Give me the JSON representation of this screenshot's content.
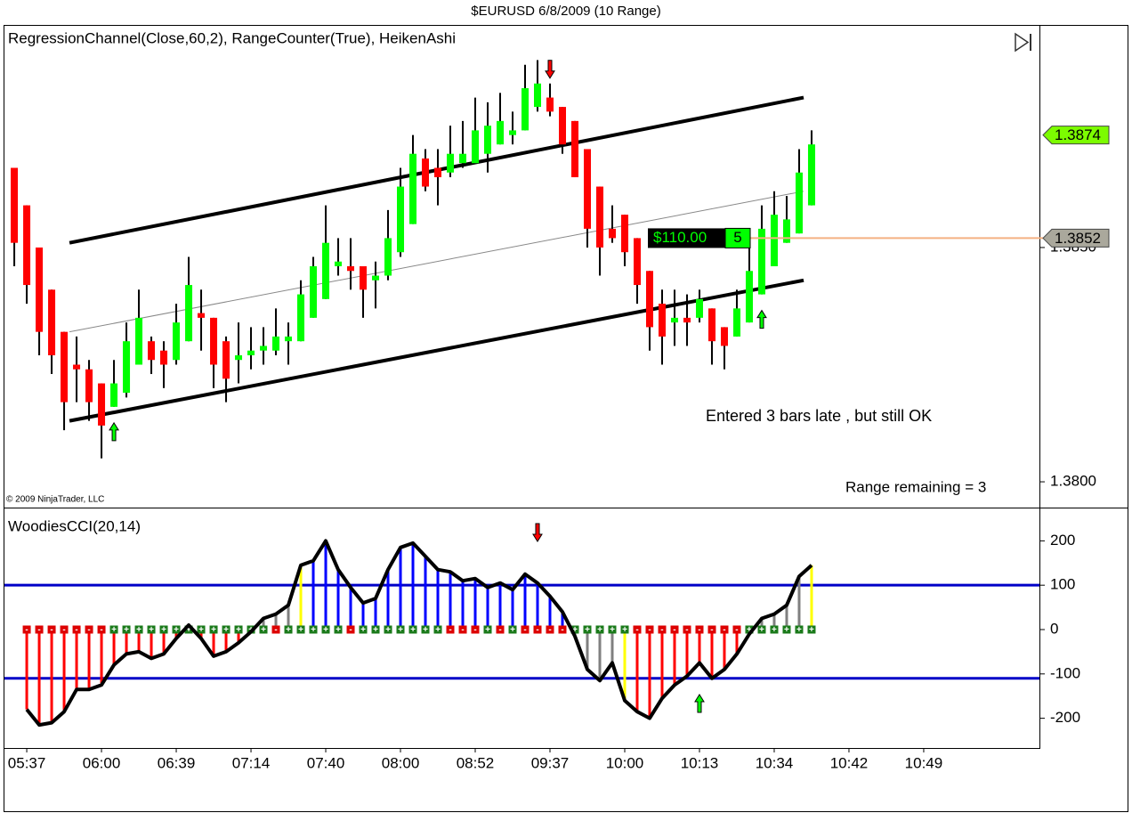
{
  "window_title": "$EURUSD  6/8/2009 (10 Range)",
  "chart_data": [
    {
      "type": "candlestick",
      "title": "RegressionChannel(Close,60,2), RangeCounter(True), HeikenAshi",
      "copyright": "© 2009 NinjaTrader, LLC",
      "xlim": [
        -0.79,
        82.29
      ],
      "ylim": [
        1.37945,
        1.38975
      ],
      "yticks": [
        {
          "value": 1.38,
          "label": "1.3800"
        },
        {
          "value": 1.385,
          "label": "1.3850"
        }
      ],
      "up_color": "#00ff00",
      "down_color": "#ff0000",
      "open": [
        1.3867,
        1.3859,
        1.385,
        1.3841,
        1.3832,
        1.3825,
        1.3824,
        1.3821,
        1.3816,
        1.3819,
        1.3825,
        1.383,
        1.3828,
        1.3826,
        1.383,
        1.3836,
        1.3835,
        1.383,
        1.3826,
        1.3827,
        1.3828,
        1.3828,
        1.383,
        1.383,
        1.3835,
        1.3839,
        1.3846,
        1.3846,
        1.3846,
        1.3843,
        1.3844,
        1.3849,
        1.3855,
        1.3869,
        1.3867,
        1.3866,
        1.3868,
        1.3868,
        1.387,
        1.3872,
        1.3874,
        1.3875,
        1.388,
        1.3882,
        1.388,
        1.3877,
        1.3871,
        1.3863,
        1.3854,
        1.3857,
        1.3852,
        1.3845,
        1.3838,
        1.3834,
        1.3835,
        1.3835,
        1.3837,
        1.3833,
        1.3831,
        1.3834,
        1.384,
        1.3846,
        1.3851,
        1.3853,
        1.3859
      ],
      "high": [
        1.3867,
        1.3859,
        1.385,
        1.3841,
        1.3832,
        1.3831,
        1.3826,
        1.3821,
        1.3826,
        1.3834,
        1.3841,
        1.3831,
        1.383,
        1.3838,
        1.3848,
        1.3841,
        1.3835,
        1.3831,
        1.3834,
        1.3833,
        1.3833,
        1.3837,
        1.3834,
        1.3843,
        1.3848,
        1.3859,
        1.3852,
        1.3852,
        1.3846,
        1.3847,
        1.3858,
        1.3867,
        1.3874,
        1.3871,
        1.3871,
        1.3876,
        1.3877,
        1.3882,
        1.3881,
        1.3883,
        1.3879,
        1.3889,
        1.389,
        1.3885,
        1.388,
        1.3877,
        1.3871,
        1.3863,
        1.3859,
        1.3857,
        1.3852,
        1.3845,
        1.3841,
        1.3841,
        1.384,
        1.3841,
        1.3837,
        1.3833,
        1.3841,
        1.3851,
        1.3859,
        1.3862,
        1.3861,
        1.3871,
        1.3875
      ],
      "low": [
        1.3846,
        1.3838,
        1.3827,
        1.3823,
        1.3811,
        1.3817,
        1.3813,
        1.3805,
        1.3816,
        1.3818,
        1.3825,
        1.3823,
        1.382,
        1.3825,
        1.383,
        1.3828,
        1.382,
        1.3817,
        1.3821,
        1.3824,
        1.3825,
        1.3827,
        1.3825,
        1.383,
        1.3835,
        1.3839,
        1.3844,
        1.3841,
        1.3835,
        1.3837,
        1.3843,
        1.3848,
        1.3855,
        1.3862,
        1.3859,
        1.3865,
        1.3867,
        1.3868,
        1.3866,
        1.3872,
        1.3872,
        1.3875,
        1.3879,
        1.3878,
        1.387,
        1.3865,
        1.385,
        1.3844,
        1.3851,
        1.3846,
        1.3838,
        1.3828,
        1.3825,
        1.3829,
        1.3829,
        1.3834,
        1.3825,
        1.3824,
        1.3831,
        1.3834,
        1.384,
        1.3846,
        1.3851,
        1.3853,
        1.3859
      ],
      "close": [
        1.3851,
        1.3842,
        1.3832,
        1.3827,
        1.3817,
        1.3824,
        1.3817,
        1.3812,
        1.3821,
        1.383,
        1.3835,
        1.3826,
        1.3825,
        1.3834,
        1.3842,
        1.3835,
        1.3825,
        1.3822,
        1.3827,
        1.3828,
        1.3829,
        1.3831,
        1.3831,
        1.384,
        1.3846,
        1.3851,
        1.3847,
        1.3845,
        1.3841,
        1.3844,
        1.3852,
        1.3863,
        1.387,
        1.3863,
        1.3865,
        1.387,
        1.387,
        1.3875,
        1.3876,
        1.3877,
        1.3875,
        1.3884,
        1.3885,
        1.3879,
        1.3872,
        1.3865,
        1.3854,
        1.385,
        1.3852,
        1.3849,
        1.3842,
        1.3833,
        1.3831,
        1.3835,
        1.3834,
        1.3839,
        1.383,
        1.3829,
        1.3837,
        1.3845,
        1.3854,
        1.3857,
        1.3856,
        1.3866,
        1.3872
      ],
      "channel": {
        "x": [
          4.43,
          63.36
        ],
        "upper": [
          1.3851,
          1.3882
        ],
        "middle": [
          1.3832,
          1.3862
        ],
        "lower": [
          1.3813,
          1.3843
        ]
      },
      "signals": [
        {
          "index": 8,
          "direction": "up"
        },
        {
          "index": 43,
          "direction": "down"
        },
        {
          "index": 60,
          "direction": "up"
        }
      ],
      "price_markers": [
        {
          "value": 1.3874,
          "label": "1.3874",
          "color": "#7cfc00"
        },
        {
          "value": 1.3852,
          "label": "1.3852",
          "color": "#aaa89c"
        }
      ],
      "position": {
        "pnl": "$110.00",
        "quantity": 5,
        "price": 1.3852,
        "line_color": "#f4b183"
      },
      "annotations": [
        "Entered 3 bars late , but still OK",
        "Range remaining = 3"
      ]
    },
    {
      "type": "cci",
      "title": "WoodiesCCI(20,14)",
      "xlim": [
        -0.79,
        82.29
      ],
      "ylim": [
        -267,
        271
      ],
      "yticks": [
        200,
        100,
        0,
        -100,
        -200
      ],
      "xticks": [
        {
          "value": 1,
          "label": "05:37"
        },
        {
          "value": 7,
          "label": "06:00"
        },
        {
          "value": 13,
          "label": "06:39"
        },
        {
          "value": 19,
          "label": "07:14"
        },
        {
          "value": 25,
          "label": "07:40"
        },
        {
          "value": 31,
          "label": "08:00"
        },
        {
          "value": 37,
          "label": "08:52"
        },
        {
          "value": 43,
          "label": "09:37"
        },
        {
          "value": 49,
          "label": "10:00"
        },
        {
          "value": 55,
          "label": "10:13"
        },
        {
          "value": 61,
          "label": "10:34"
        },
        {
          "value": 67,
          "label": "10:42"
        },
        {
          "value": 73,
          "label": "10:49"
        }
      ],
      "levels": [
        100,
        -110
      ],
      "level_color": "#0000c8",
      "values": [
        null,
        -180,
        -215,
        -210,
        -185,
        -135,
        -135,
        -125,
        -80,
        -55,
        -50,
        -65,
        -55,
        -20,
        10,
        -20,
        -60,
        -50,
        -30,
        -5,
        25,
        35,
        55,
        145,
        155,
        200,
        135,
        95,
        60,
        70,
        135,
        185,
        195,
        165,
        135,
        130,
        110,
        115,
        95,
        105,
        90,
        125,
        105,
        75,
        40,
        -15,
        -90,
        -115,
        -75,
        -160,
        -185,
        -200,
        -155,
        -125,
        -105,
        -75,
        -110,
        -90,
        -55,
        -10,
        25,
        35,
        55,
        120,
        145
      ],
      "bar_colors": [
        null,
        "#ff0000",
        "#ff0000",
        "#ff0000",
        "#ff0000",
        "#ff0000",
        "#ff0000",
        "#ff0000",
        "#ff0000",
        "#ff0000",
        "#ff0000",
        "#ff0000",
        "#ff0000",
        "#ff0000",
        "#ff0000",
        "#ff0000",
        "#ff0000",
        "#ff0000",
        "#ff0000",
        "#ff0000",
        "#808080",
        "#808080",
        "#808080",
        "#ffff00",
        "#0000ff",
        "#0000ff",
        "#0000ff",
        "#0000ff",
        "#0000ff",
        "#0000ff",
        "#0000ff",
        "#0000ff",
        "#0000ff",
        "#0000ff",
        "#0000ff",
        "#0000ff",
        "#0000ff",
        "#0000ff",
        "#0000ff",
        "#0000ff",
        "#0000ff",
        "#0000ff",
        "#0000ff",
        "#0000ff",
        "#0000ff",
        "#808080",
        "#808080",
        "#808080",
        "#808080",
        "#ffff00",
        "#ff0000",
        "#ff0000",
        "#ff0000",
        "#ff0000",
        "#ff0000",
        "#ff0000",
        "#ff0000",
        "#ff0000",
        "#ff0000",
        "#ff0000",
        "#808080",
        "#808080",
        "#808080",
        "#808080",
        "#ffff00"
      ],
      "zero_signs": [
        null,
        "-",
        "-",
        "-",
        "-",
        "-",
        "-",
        "-",
        "+",
        "+",
        "+",
        "+",
        "+",
        "+",
        "+",
        "+",
        "+",
        "+",
        "+",
        "+",
        "+",
        "-",
        "+",
        "+",
        "+",
        "+",
        "+",
        "-",
        "+",
        "+",
        "+",
        "+",
        "+",
        "+",
        "+",
        "-",
        "-",
        "-",
        "+",
        "-",
        "+",
        "-",
        "-",
        "-",
        "-",
        "+",
        "+",
        "+",
        "+",
        "+",
        "-",
        "-",
        "-",
        "-",
        "-",
        "-",
        "-",
        "-",
        "-",
        "+",
        "+",
        "+",
        "+",
        "+",
        "+"
      ],
      "signals": [
        {
          "index": 42,
          "direction": "down"
        },
        {
          "index": 55,
          "direction": "up"
        }
      ]
    }
  ]
}
